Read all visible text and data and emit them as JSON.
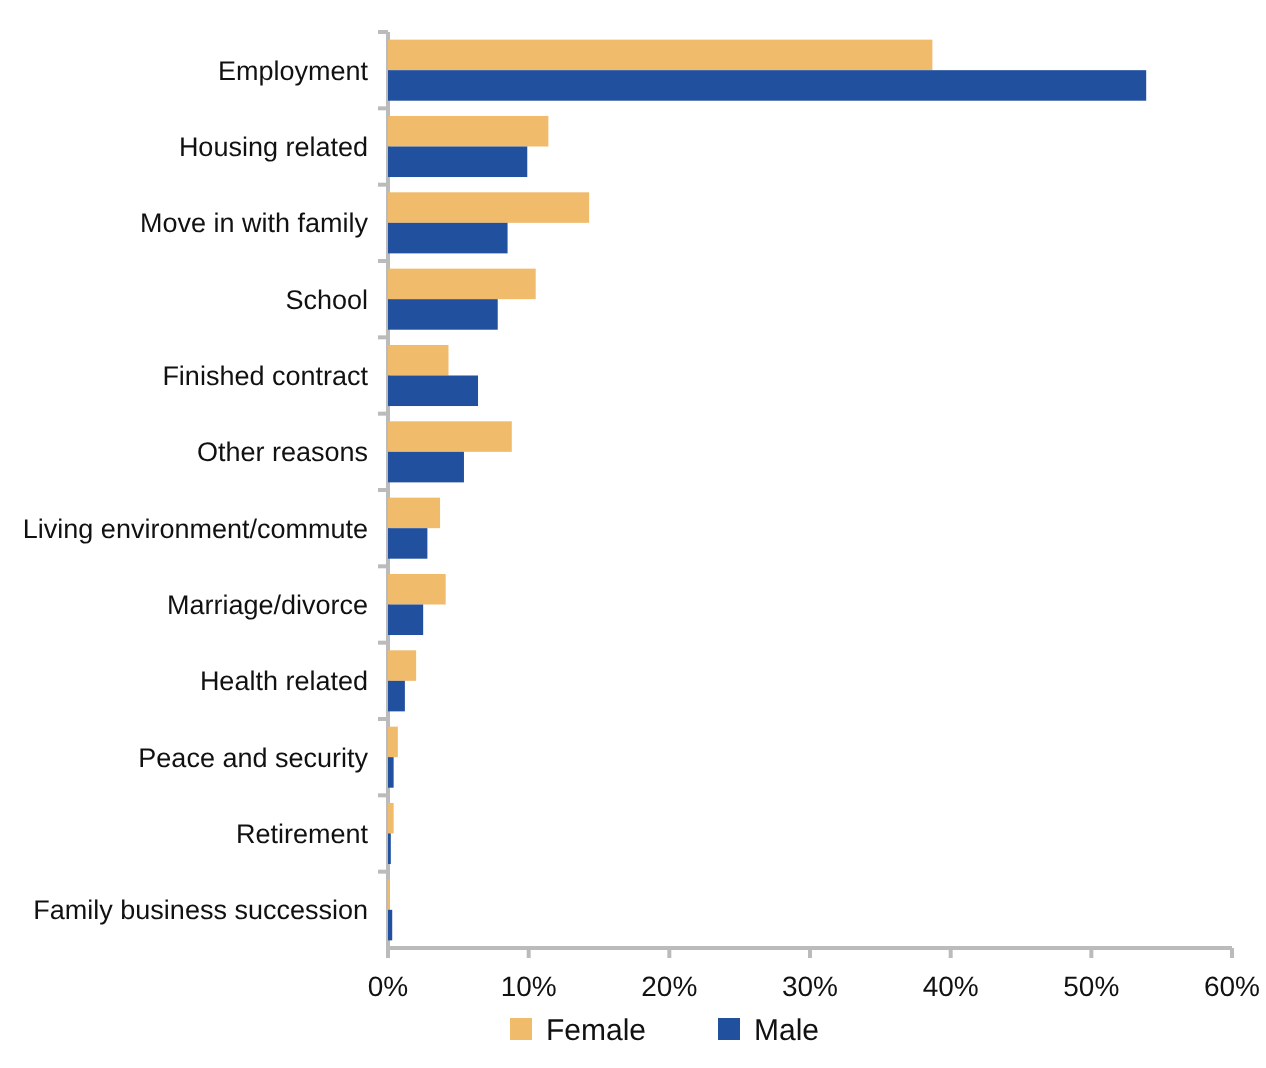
{
  "chart_data": {
    "type": "bar",
    "orientation": "horizontal",
    "categories": [
      "Employment",
      "Housing related",
      "Move in with family",
      "School",
      "Finished contract",
      "Other reasons",
      "Living environment/commute",
      "Marriage/divorce",
      "Health related",
      "Peace and security",
      "Retirement",
      "Family business succession"
    ],
    "series": [
      {
        "name": "Female",
        "color": "#f0bb6b",
        "values": [
          38.7,
          11.4,
          14.3,
          10.5,
          4.3,
          8.8,
          3.7,
          4.1,
          2.0,
          0.7,
          0.4,
          0.1
        ]
      },
      {
        "name": "Male",
        "color": "#21509e",
        "values": [
          53.9,
          9.9,
          8.5,
          7.8,
          6.4,
          5.4,
          2.8,
          2.5,
          1.2,
          0.4,
          0.2,
          0.3
        ]
      }
    ],
    "xlim": [
      0,
      60
    ],
    "xticks": [
      {
        "value": 0,
        "label": "0%"
      },
      {
        "value": 10,
        "label": "10%"
      },
      {
        "value": 20,
        "label": "20%"
      },
      {
        "value": 30,
        "label": "30%"
      },
      {
        "value": 40,
        "label": "40%"
      },
      {
        "value": 50,
        "label": "50%"
      },
      {
        "value": 60,
        "label": "60%"
      }
    ],
    "grid": false,
    "legend": "bottom"
  }
}
